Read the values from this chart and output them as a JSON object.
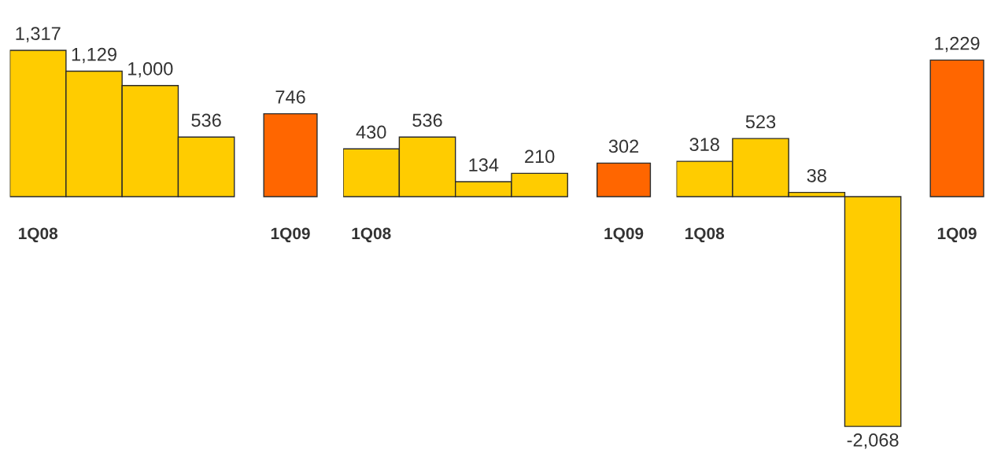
{
  "chart_data": [
    {
      "type": "bar",
      "categories": [
        "1Q08",
        null,
        null,
        null,
        "1Q09"
      ],
      "values": [
        1317,
        1129,
        1000,
        536,
        746
      ],
      "colors": [
        "#ffcc00",
        "#ffcc00",
        "#ffcc00",
        "#ffcc00",
        "#ff6600"
      ],
      "value_labels": [
        "1,317",
        "1,129",
        "1,000",
        "536",
        "746"
      ]
    },
    {
      "type": "bar",
      "categories": [
        "1Q08",
        null,
        null,
        null,
        "1Q09"
      ],
      "values": [
        430,
        536,
        134,
        210,
        302
      ],
      "colors": [
        "#ffcc00",
        "#ffcc00",
        "#ffcc00",
        "#ffcc00",
        "#ff6600"
      ],
      "value_labels": [
        "430",
        "536",
        "134",
        "210",
        "302"
      ]
    },
    {
      "type": "bar",
      "categories": [
        "1Q08",
        null,
        null,
        null,
        "1Q09"
      ],
      "values": [
        318,
        523,
        38,
        -2068,
        1229
      ],
      "colors": [
        "#ffcc00",
        "#ffcc00",
        "#ffcc00",
        "#ffcc00",
        "#ff6600"
      ],
      "value_labels": [
        "318",
        "523",
        "38",
        "-2,068",
        "1,229"
      ]
    }
  ]
}
